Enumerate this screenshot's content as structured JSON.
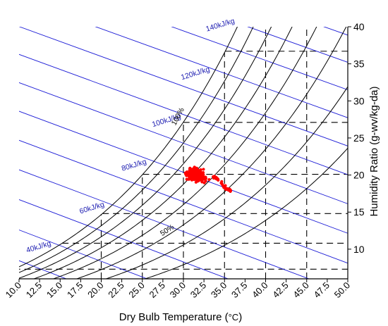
{
  "chart_data": {
    "type": "scatter",
    "title": "",
    "xlabel": "Dry Bulb Temperature (°C)",
    "xlabel_main": "Dry Bulb Temperature (",
    "xlabel_unit": "°C",
    "xlabel_close": ")",
    "ylabel": "Humidity Ratio (g-wv/kg-da)",
    "xlim": [
      10,
      50
    ],
    "ylim": [
      6,
      40
    ],
    "x_ticks": [
      "10.0",
      "12.5",
      "15.0",
      "17.5",
      "20.0",
      "22.5",
      "25.0",
      "27.5",
      "30.0",
      "32.5",
      "35.0",
      "37.5",
      "40.0",
      "42.5",
      "45.0",
      "47.5",
      "50.0"
    ],
    "y_ticks": [
      "10",
      "15",
      "20",
      "25",
      "30",
      "35",
      "40"
    ],
    "enthalpy_labels": [
      {
        "text": "40kJ/kg",
        "h": 40
      },
      {
        "text": "60kJ/kg",
        "h": 60
      },
      {
        "text": "80kJ/kg",
        "h": 80
      },
      {
        "text": "100kJ/kg",
        "h": 100
      },
      {
        "text": "120kJ/kg",
        "h": 120
      },
      {
        "text": "140kJ/kg",
        "h": 140
      }
    ],
    "rh_labels": [
      {
        "text": "100%",
        "rh": 100
      },
      {
        "text": "50%",
        "rh": 50
      }
    ],
    "rh_curves_percent": [
      30,
      40,
      50,
      60,
      70,
      80,
      90,
      100
    ],
    "enthalpy_lines_kJkg": [
      20,
      30,
      40,
      50,
      60,
      70,
      80,
      90,
      100,
      110,
      120,
      130,
      140,
      150
    ],
    "dashed_temperatures_C": [
      20,
      25,
      30,
      35,
      40,
      45
    ],
    "dashed_humidity_ratios": [
      7.3,
      10.8,
      14.8,
      20.1,
      27.1,
      36.7
    ],
    "data_cluster": {
      "x_range": [
        29.5,
        35.8
      ],
      "y_range": [
        17.0,
        22.0
      ],
      "color": "#ff0000",
      "point_count": 320
    },
    "colors": {
      "rh_curves": "#000000",
      "enthalpy_lines": "#1a1ad6",
      "enthalpy_labels": "#1a1ab0",
      "dashed_grid": "#000000",
      "points": "#ff0000"
    },
    "grid": false,
    "legend": "none"
  }
}
